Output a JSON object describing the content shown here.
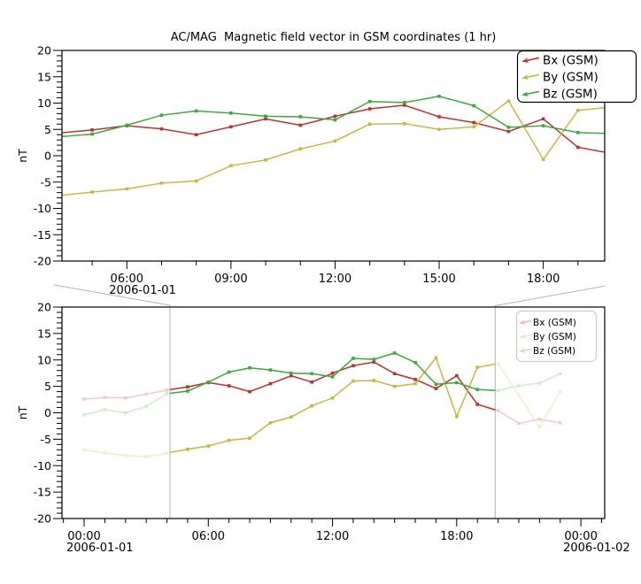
{
  "title": "AC/MAG  Magnetic field vector in GSM coordinates (1 hr)",
  "colors": {
    "bx": "#b53535",
    "by": "#c5b944",
    "bz": "#3fa93f",
    "frame": "#000000",
    "selection_gray": "#b5b5b5",
    "faded_legend_border": "#cccccc",
    "faded_legend_text": "#bcbcbc"
  },
  "legend": [
    {
      "label": "Bx (GSM)",
      "series": "bx"
    },
    {
      "label": "By (GSM)",
      "series": "by"
    },
    {
      "label": "Bz (GSM)",
      "series": "bz"
    }
  ],
  "chart_data": {
    "type": "line",
    "title": "AC/MAG  Magnetic field vector in GSM coordinates (1 hr)",
    "ylabel": "nT",
    "ylim": [
      -20,
      20
    ],
    "y_major_ticks": [
      -20,
      -15,
      -10,
      -5,
      0,
      5,
      10,
      15,
      20
    ],
    "y_minor_step": 1,
    "x_hours": [
      0,
      1,
      2,
      3,
      4,
      5,
      6,
      7,
      8,
      9,
      10,
      11,
      12,
      13,
      14,
      15,
      16,
      17,
      18,
      19,
      20,
      21,
      22,
      23
    ],
    "series": [
      {
        "name": "Bx (GSM)",
        "key": "bx",
        "values": [
          2.6,
          2.9,
          2.8,
          3.5,
          4.3,
          4.9,
          5.7,
          5.1,
          4.0,
          5.5,
          7.0,
          5.8,
          7.5,
          8.9,
          9.6,
          7.4,
          6.3,
          4.6,
          7.0,
          1.6,
          0.4,
          -2.0,
          -1.2,
          -1.9
        ]
      },
      {
        "name": "By (GSM)",
        "key": "by",
        "values": [
          -7.0,
          -7.6,
          -8.1,
          -8.3,
          -7.6,
          -6.9,
          -6.3,
          -5.2,
          -4.8,
          -1.9,
          -0.8,
          1.3,
          2.8,
          6.0,
          6.1,
          5.0,
          5.5,
          10.4,
          -0.7,
          8.6,
          9.3,
          3.3,
          -2.7,
          4.0
        ]
      },
      {
        "name": "Bz (GSM)",
        "key": "bz",
        "values": [
          -0.4,
          0.6,
          0.0,
          1.2,
          3.6,
          4.1,
          5.8,
          7.7,
          8.5,
          8.1,
          7.5,
          7.4,
          6.8,
          10.3,
          10.1,
          11.3,
          9.5,
          5.4,
          5.7,
          4.4,
          4.2,
          5.1,
          5.6,
          7.4
        ]
      }
    ],
    "panels": [
      {
        "id": "detail",
        "xlim_hours": [
          4.13,
          19.77
        ],
        "x_major_ticks": [
          {
            "hour": 6,
            "label": "06:00"
          },
          {
            "hour": 9,
            "label": "09:00"
          },
          {
            "hour": 12,
            "label": "12:00"
          },
          {
            "hour": 15,
            "label": "15:00"
          },
          {
            "hour": 18,
            "label": "18:00"
          }
        ],
        "x_minor_every_hours": 1,
        "date_labels": [
          {
            "hour": 6,
            "text": "2006-01-01"
          }
        ],
        "legend_faded": false
      },
      {
        "id": "context",
        "xlim_hours": [
          -1.07,
          25.15
        ],
        "x_major_ticks": [
          {
            "hour": 0,
            "label": "00:00"
          },
          {
            "hour": 6,
            "label": "06:00"
          },
          {
            "hour": 12,
            "label": "12:00"
          },
          {
            "hour": 18,
            "label": "18:00"
          },
          {
            "hour": 24,
            "label": "00:00"
          }
        ],
        "x_minor_every_hours": 1,
        "date_labels": [
          {
            "hour": 0,
            "text": "2006-01-01"
          },
          {
            "hour": 24,
            "text": "2006-01-02"
          }
        ],
        "legend_faded": true,
        "selection_hours": [
          4.15,
          19.86
        ]
      }
    ]
  }
}
